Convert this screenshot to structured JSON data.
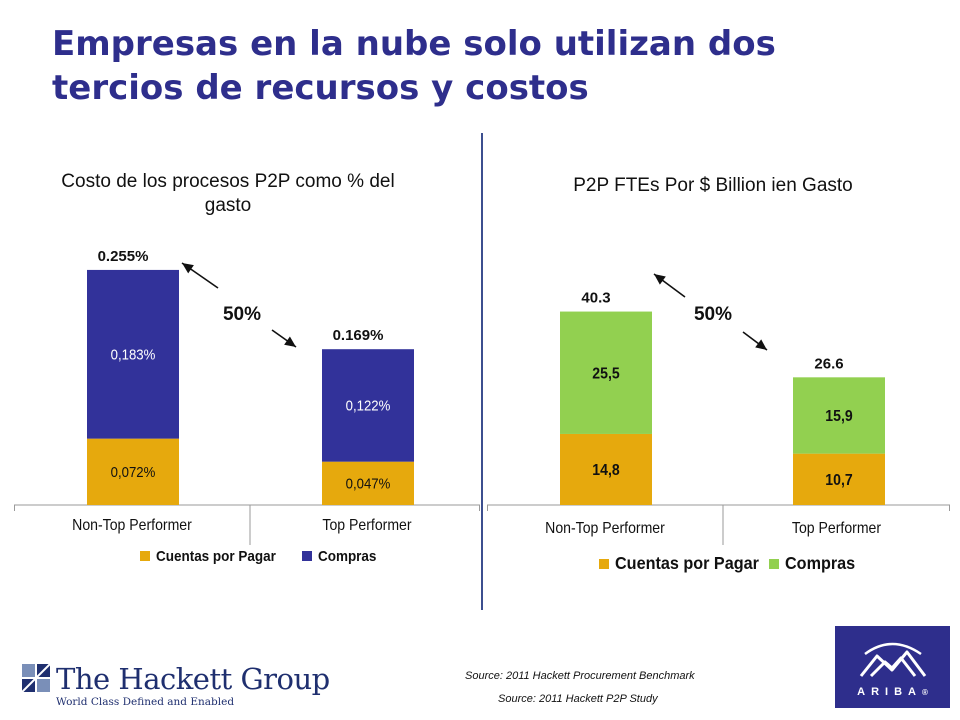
{
  "slide": {
    "title": "Empresas en la nube solo utilizan dos tercios de recursos y costos"
  },
  "colors": {
    "title": "#2e2e8c",
    "cuentas": "#e6a90d",
    "compras_left": "#32329a",
    "compras_right": "#92d050"
  },
  "chart_data": [
    {
      "type": "bar",
      "stacked": true,
      "title": "Costo de los procesos P2P como % del gasto",
      "categories": [
        "Non-Top Performer",
        "Top Performer"
      ],
      "series": [
        {
          "name": "Cuentas por Pagar",
          "values": [
            0.072,
            0.047
          ],
          "labels": [
            "0,072%",
            "0,047%"
          ],
          "color": "#e6a90d"
        },
        {
          "name": "Compras",
          "values": [
            0.183,
            0.122
          ],
          "labels": [
            "0,183%",
            "0,122%"
          ],
          "color": "#32329a"
        }
      ],
      "totals": [
        "0.255%",
        "0.169%"
      ],
      "annotation": "50%",
      "ylim": [
        0,
        0.32
      ],
      "legend_position": "bottom"
    },
    {
      "type": "bar",
      "stacked": true,
      "title": "P2P FTEs Por $ Billion ien Gasto",
      "categories": [
        "Non-Top Performer",
        "Top Performer"
      ],
      "series": [
        {
          "name": "Cuentas por Pagar",
          "values": [
            14.8,
            10.7
          ],
          "labels": [
            "14,8",
            "10,7"
          ],
          "color": "#e6a90d"
        },
        {
          "name": "Compras",
          "values": [
            25.5,
            15.9
          ],
          "labels": [
            "25,5",
            "15,9"
          ],
          "color": "#92d050"
        }
      ],
      "totals": [
        "40.3",
        "26.6"
      ],
      "annotation": "50%",
      "ylim": [
        0,
        50
      ],
      "legend_position": "bottom"
    }
  ],
  "footer": {
    "source1": "Source: 2011 Hackett Procurement  Benchmark",
    "source2": "Source: 2011 Hackett P2P Study"
  },
  "hackett": {
    "name": "The Hackett Group",
    "tagline": "World Class Defined and Enabled"
  },
  "ariba": {
    "word": "ARIBA",
    "mark": "®"
  }
}
